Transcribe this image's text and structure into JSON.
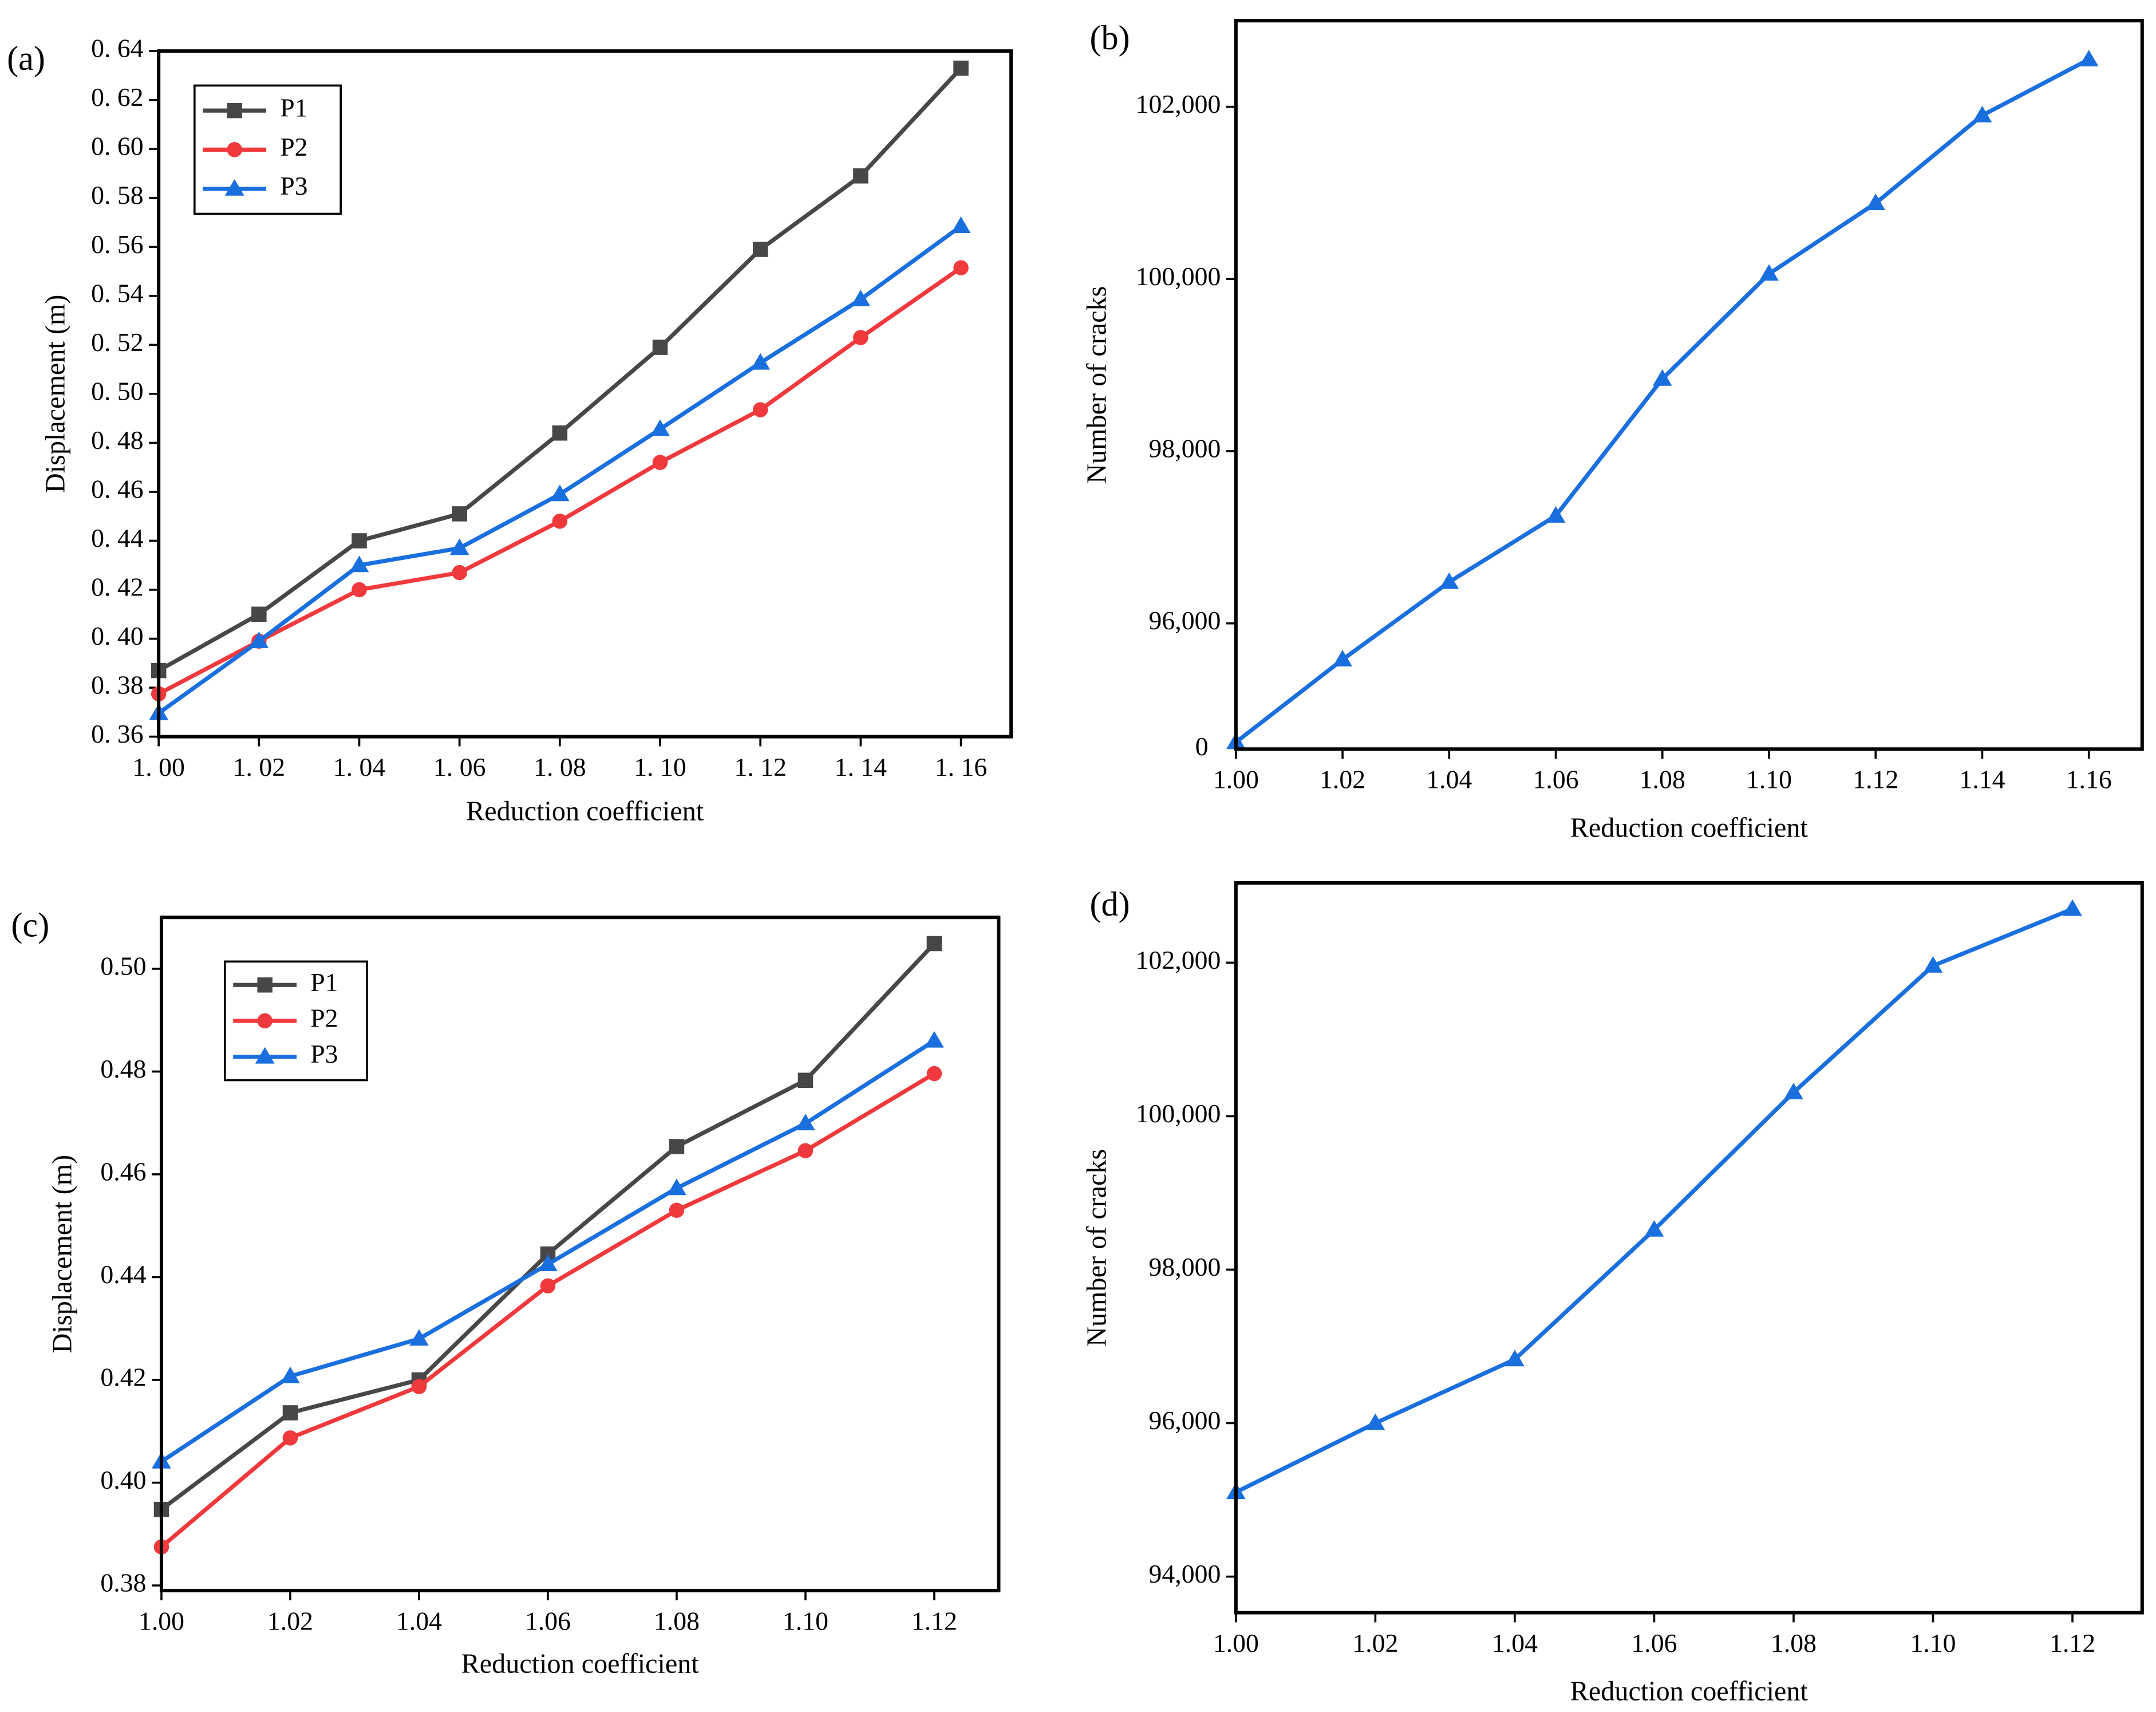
{
  "chart_data": [
    {
      "type": "line",
      "panel_label": "(a)",
      "xlabel": "Reduction coefficient",
      "ylabel": "Displacement  (m)",
      "x": [
        1.0,
        1.02,
        1.04,
        1.06,
        1.08,
        1.1,
        1.12,
        1.14,
        1.16
      ],
      "series": [
        {
          "name": "P1",
          "color": "#474747",
          "marker": "square",
          "values": [
            0.387,
            0.41,
            0.44,
            0.451,
            0.484,
            0.519,
            0.559,
            0.589,
            0.633
          ]
        },
        {
          "name": "P2",
          "color": "#f0393c",
          "marker": "circle",
          "values": [
            0.3775,
            0.399,
            0.42,
            0.427,
            0.448,
            0.472,
            0.4935,
            0.523,
            0.5515
          ]
        },
        {
          "name": "P3",
          "color": "#1a6fdf",
          "marker": "triangle",
          "values": [
            0.3696,
            0.399,
            0.43,
            0.437,
            0.459,
            0.4856,
            0.5127,
            0.5386,
            0.5685
          ]
        }
      ],
      "xlim": [
        1.0,
        1.17
      ],
      "ylim": [
        0.36,
        0.64
      ],
      "xticks": [
        {
          "value": 1.0,
          "label": "1. 00"
        },
        {
          "value": 1.02,
          "label": "1. 02"
        },
        {
          "value": 1.04,
          "label": "1. 04"
        },
        {
          "value": 1.06,
          "label": "1. 06"
        },
        {
          "value": 1.08,
          "label": "1. 08"
        },
        {
          "value": 1.1,
          "label": "1. 10"
        },
        {
          "value": 1.12,
          "label": "1. 12"
        },
        {
          "value": 1.14,
          "label": "1. 14"
        },
        {
          "value": 1.16,
          "label": "1. 16"
        }
      ],
      "yticks": [
        {
          "value": 0.36,
          "label": "0. 36"
        },
        {
          "value": 0.38,
          "label": "0. 38"
        },
        {
          "value": 0.4,
          "label": "0. 40"
        },
        {
          "value": 0.42,
          "label": "0. 42"
        },
        {
          "value": 0.44,
          "label": "0. 44"
        },
        {
          "value": 0.46,
          "label": "0. 46"
        },
        {
          "value": 0.48,
          "label": "0. 48"
        },
        {
          "value": 0.5,
          "label": "0. 50"
        },
        {
          "value": 0.52,
          "label": "0. 52"
        },
        {
          "value": 0.54,
          "label": "0. 54"
        },
        {
          "value": 0.56,
          "label": "0. 56"
        },
        {
          "value": 0.58,
          "label": "0. 58"
        },
        {
          "value": 0.6,
          "label": "0. 60"
        },
        {
          "value": 0.62,
          "label": "0. 62"
        },
        {
          "value": 0.64,
          "label": "0. 64"
        }
      ],
      "legend": "upper left"
    },
    {
      "type": "line",
      "panel_label": "(b)",
      "xlabel": "Reduction coefficient",
      "ylabel": "Number of cracks",
      "x": [
        1.0,
        1.02,
        1.04,
        1.06,
        1.08,
        1.1,
        1.12,
        1.14,
        1.16
      ],
      "series": [
        {
          "color": "#1a6fdf",
          "marker": "triangle",
          "values": [
            94620,
            95580,
            96480,
            97250,
            98840,
            100060,
            100880,
            101900,
            102550
          ]
        }
      ],
      "xlim": [
        1.0,
        1.17
      ],
      "ylim": [
        94540,
        103000
      ],
      "xticks": [
        {
          "value": 1.0,
          "label": "1.00"
        },
        1.02,
        1.04,
        1.06,
        1.08,
        {
          "value": 1.1,
          "label": "1.10"
        },
        1.12,
        1.14,
        1.16
      ],
      "yticks": [
        {
          "value": 96000,
          "label": "96,000"
        },
        {
          "value": 98000,
          "label": "98,000"
        },
        {
          "value": 100000,
          "label": "100,000"
        },
        {
          "value": 102000,
          "label": "102,000"
        }
      ],
      "axis_break_label": "0"
    },
    {
      "type": "line",
      "panel_label": "(c)",
      "xlabel": "Reduction coefficient",
      "ylabel": "Displacement  (m)",
      "x": [
        1.0,
        1.02,
        1.04,
        1.06,
        1.08,
        1.1,
        1.12
      ],
      "series": [
        {
          "name": "P1",
          "color": "#474747",
          "marker": "square",
          "values": [
            0.3948,
            0.4136,
            0.42,
            0.4445,
            0.4654,
            0.4783,
            0.5049
          ]
        },
        {
          "name": "P2",
          "color": "#f0393c",
          "marker": "circle",
          "values": [
            0.3875,
            0.4087,
            0.4187,
            0.4383,
            0.453,
            0.4646,
            0.4796
          ]
        },
        {
          "name": "P3",
          "color": "#1a6fdf",
          "marker": "triangle",
          "values": [
            0.4041,
            0.4207,
            0.428,
            0.4425,
            0.4573,
            0.4699,
            0.486
          ]
        }
      ],
      "xlim": [
        1.0,
        1.13
      ],
      "ylim": [
        0.379,
        0.51
      ],
      "xticks": [
        {
          "value": 1.0,
          "label": "1.00"
        },
        1.02,
        1.04,
        1.06,
        1.08,
        {
          "value": 1.1,
          "label": "1.10"
        },
        1.12
      ],
      "yticks": [
        0.38,
        {
          "value": 0.4,
          "label": "0.40"
        },
        0.42,
        0.44,
        0.46,
        0.48,
        {
          "value": 0.5,
          "label": "0.50"
        }
      ],
      "legend": "upper left"
    },
    {
      "type": "line",
      "panel_label": "(d)",
      "xlabel": "Reduction coefficient",
      "ylabel": "Number of cracks",
      "x": [
        1.0,
        1.02,
        1.04,
        1.06,
        1.08,
        1.1,
        1.12
      ],
      "series": [
        {
          "color": "#1a6fdf",
          "marker": "triangle",
          "values": [
            95100,
            96000,
            96830,
            98520,
            100310,
            101960,
            102700
          ]
        }
      ],
      "xlim": [
        1.0,
        1.13
      ],
      "ylim": [
        93530,
        103040
      ],
      "xticks": [
        {
          "value": 1.0,
          "label": "1.00"
        },
        1.02,
        1.04,
        1.06,
        1.08,
        {
          "value": 1.1,
          "label": "1.10"
        },
        1.12
      ],
      "yticks": [
        {
          "value": 94000,
          "label": "94,000"
        },
        {
          "value": 96000,
          "label": "96,000"
        },
        {
          "value": 98000,
          "label": "98,000"
        },
        {
          "value": 100000,
          "label": "100,000"
        },
        {
          "value": 102000,
          "label": "102,000"
        }
      ]
    }
  ]
}
